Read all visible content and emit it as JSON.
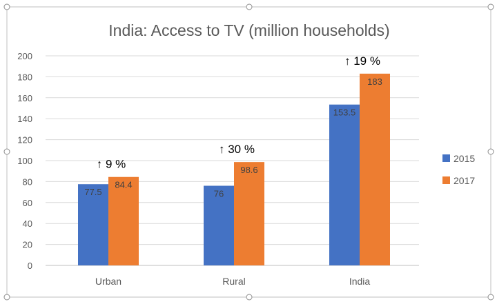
{
  "chart_data": {
    "type": "bar",
    "title": "India: Access to TV (million households)",
    "categories": [
      "Urban",
      "Rural",
      "India"
    ],
    "series": [
      {
        "name": "2015",
        "values": [
          77.5,
          76,
          153.5
        ],
        "labels": [
          "77.5",
          "76",
          "153.5"
        ],
        "color": "#4472C4"
      },
      {
        "name": "2017",
        "values": [
          84.4,
          98.6,
          183
        ],
        "labels": [
          "84.4",
          "98.6",
          "183"
        ],
        "color": "#ED7D31"
      }
    ],
    "annotations": [
      "↑ 9 %",
      "↑ 30 %",
      "↑ 19 %"
    ],
    "ylim": [
      0,
      200
    ],
    "yticks": [
      "0",
      "20",
      "40",
      "60",
      "80",
      "100",
      "120",
      "140",
      "160",
      "180",
      "200"
    ],
    "ytick_values": [
      0,
      20,
      40,
      60,
      80,
      100,
      120,
      140,
      160,
      180,
      200
    ],
    "grid": true,
    "legend_position": "right",
    "gridline_color": "#D9D9D9",
    "frame_color": "#BFBFBF"
  }
}
